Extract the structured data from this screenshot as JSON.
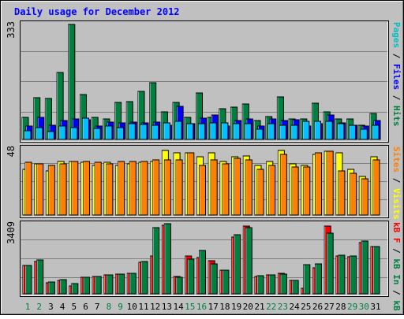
{
  "chart_data": [
    {
      "type": "bar",
      "title": "Daily usage for December 2012",
      "categories": [
        "1",
        "2",
        "3",
        "4",
        "5",
        "6",
        "7",
        "8",
        "9",
        "10",
        "11",
        "12",
        "13",
        "14",
        "15",
        "16",
        "17",
        "18",
        "19",
        "20",
        "21",
        "22",
        "23",
        "24",
        "25",
        "26",
        "27",
        "28",
        "29",
        "30",
        "31"
      ],
      "weekend_days": [
        "1",
        "2",
        "8",
        "9",
        "15",
        "16",
        "22",
        "23",
        "29",
        "30"
      ],
      "ymax_label": "333",
      "ylim": [
        0,
        333
      ],
      "right_labels": [
        {
          "text": "Pages",
          "color": "#00c0c0"
        },
        {
          "text": " / ",
          "color": "#000000"
        },
        {
          "text": "Files",
          "color": "#0000ff"
        },
        {
          "text": " / ",
          "color": "#000000"
        },
        {
          "text": "Hits",
          "color": "#008040"
        }
      ],
      "series": [
        {
          "name": "Hits",
          "color": "#008040",
          "values": [
            64,
            120,
            118,
            195,
            333,
            130,
            64,
            60,
            107,
            110,
            140,
            165,
            80,
            107,
            64,
            135,
            64,
            90,
            93,
            103,
            55,
            67,
            124,
            60,
            60,
            105,
            80,
            60,
            60,
            40,
            75
          ]
        },
        {
          "name": "Files",
          "color": "#0000ff",
          "values": [
            38,
            63,
            40,
            55,
            60,
            58,
            38,
            50,
            48,
            50,
            48,
            50,
            42,
            95,
            45,
            62,
            70,
            38,
            55,
            60,
            38,
            60,
            55,
            57,
            38,
            45,
            70,
            47,
            40,
            38,
            55
          ]
        },
        {
          "name": "Pages",
          "color": "#00c0ff",
          "values": [
            25,
            34,
            22,
            38,
            35,
            62,
            33,
            38,
            35,
            45,
            43,
            40,
            48,
            52,
            45,
            45,
            48,
            48,
            45,
            45,
            30,
            45,
            40,
            42,
            52,
            52,
            52,
            45,
            42,
            30,
            42
          ]
        }
      ]
    },
    {
      "type": "bar",
      "categories": [
        "1",
        "2",
        "3",
        "4",
        "5",
        "6",
        "7",
        "8",
        "9",
        "10",
        "11",
        "12",
        "13",
        "14",
        "15",
        "16",
        "17",
        "18",
        "19",
        "20",
        "21",
        "22",
        "23",
        "24",
        "25",
        "26",
        "27",
        "28",
        "29",
        "30",
        "31"
      ],
      "ymax_label": "48",
      "ylim": [
        0,
        48
      ],
      "right_labels": [
        {
          "text": "Sites",
          "color": "#ff8000"
        },
        {
          "text": " / ",
          "color": "#000000"
        },
        {
          "text": "Visits",
          "color": "#ffff00"
        }
      ],
      "series": [
        {
          "name": "Visits",
          "color": "#ffff00",
          "values": [
            33,
            37,
            32,
            39,
            39,
            38,
            36,
            38,
            36,
            37,
            38,
            39,
            47,
            45,
            45,
            42,
            45,
            39,
            42,
            43,
            36,
            39,
            47,
            37,
            36,
            44,
            46,
            45,
            33,
            28,
            42
          ]
        },
        {
          "name": "Sites",
          "color": "#ff8000",
          "values": [
            38,
            37,
            36,
            37,
            39,
            39,
            38,
            37,
            39,
            39,
            39,
            40,
            40,
            40,
            45,
            36,
            40,
            37,
            41,
            40,
            33,
            36,
            44,
            35,
            35,
            45,
            46,
            32,
            30,
            26,
            40
          ]
        }
      ]
    },
    {
      "type": "bar",
      "categories": [
        "1",
        "2",
        "3",
        "4",
        "5",
        "6",
        "7",
        "8",
        "9",
        "10",
        "11",
        "12",
        "13",
        "14",
        "15",
        "16",
        "17",
        "18",
        "19",
        "20",
        "21",
        "22",
        "23",
        "24",
        "25",
        "26",
        "27",
        "28",
        "29",
        "30",
        "31"
      ],
      "ymax_label": "3409",
      "ylim": [
        0,
        3409
      ],
      "right_labels": [
        {
          "text": "kB F",
          "color": "#ff0000"
        },
        {
          "text": " / ",
          "color": "#000000"
        },
        {
          "text": "kB In",
          "color": "#008040"
        },
        {
          "text": " / ",
          "color": "#000000"
        },
        {
          "text": "kB Out",
          "color": "#008040"
        }
      ],
      "series": [
        {
          "name": "kB F",
          "color": "#ff0000",
          "values": [
            1400,
            1580,
            540,
            640,
            400,
            800,
            840,
            920,
            950,
            1000,
            1550,
            1860,
            3380,
            860,
            1870,
            1800,
            1620,
            1150,
            2800,
            3320,
            840,
            920,
            1000,
            640,
            260,
            1280,
            3320,
            1860,
            1820,
            2520,
            2340
          ]
        },
        {
          "name": "kB In",
          "color": "#008040",
          "values": [
            1400,
            1660,
            600,
            700,
            500,
            830,
            860,
            920,
            960,
            1020,
            1600,
            3240,
            3460,
            800,
            1720,
            2140,
            1480,
            1180,
            2890,
            3240,
            880,
            940,
            970,
            640,
            1420,
            1460,
            3000,
            1880,
            1860,
            2600,
            2340
          ]
        }
      ]
    }
  ]
}
